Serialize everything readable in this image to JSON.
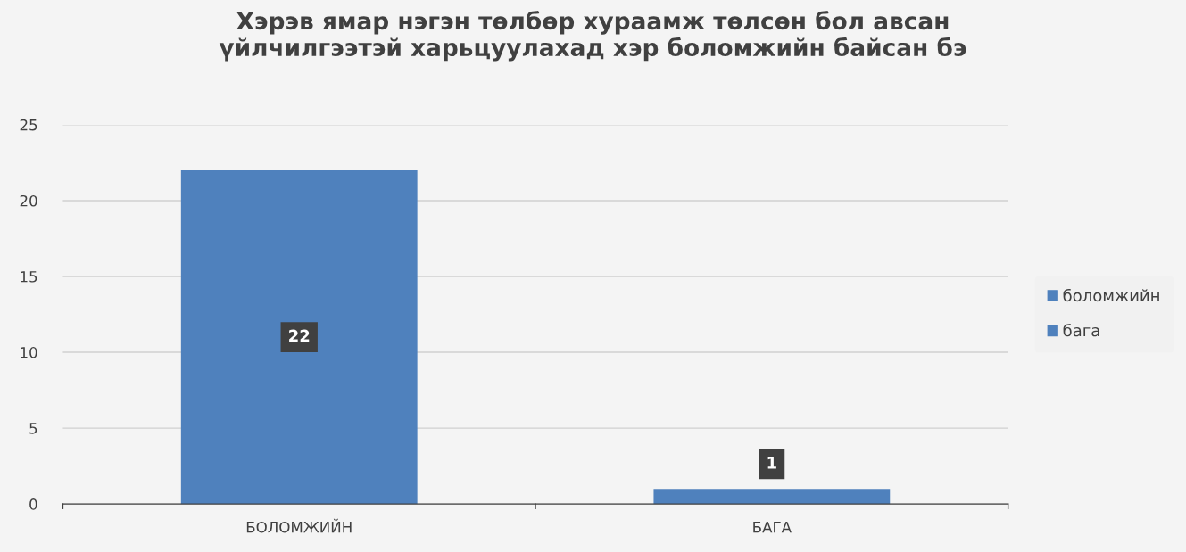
{
  "chart_data": {
    "type": "bar",
    "title": "Хэрэв ямар нэгэн төлбөр хураамж төлсөн бол авсан\nүйлчилгээтэй харьцуулахад хэр боломжийн байсан бэ",
    "categories": [
      "БОЛОМЖИЙН",
      "БАГА"
    ],
    "series": [
      {
        "name": "боломжийн",
        "color": "#4f81bd",
        "values": [
          22,
          null
        ]
      },
      {
        "name": "бага",
        "color": "#4f81bd",
        "values": [
          null,
          1
        ]
      }
    ],
    "ylim": [
      0,
      25
    ],
    "yticks": [
      0,
      5,
      10,
      15,
      20,
      25
    ],
    "grid": "y",
    "legend": "right",
    "data_labels": true
  }
}
